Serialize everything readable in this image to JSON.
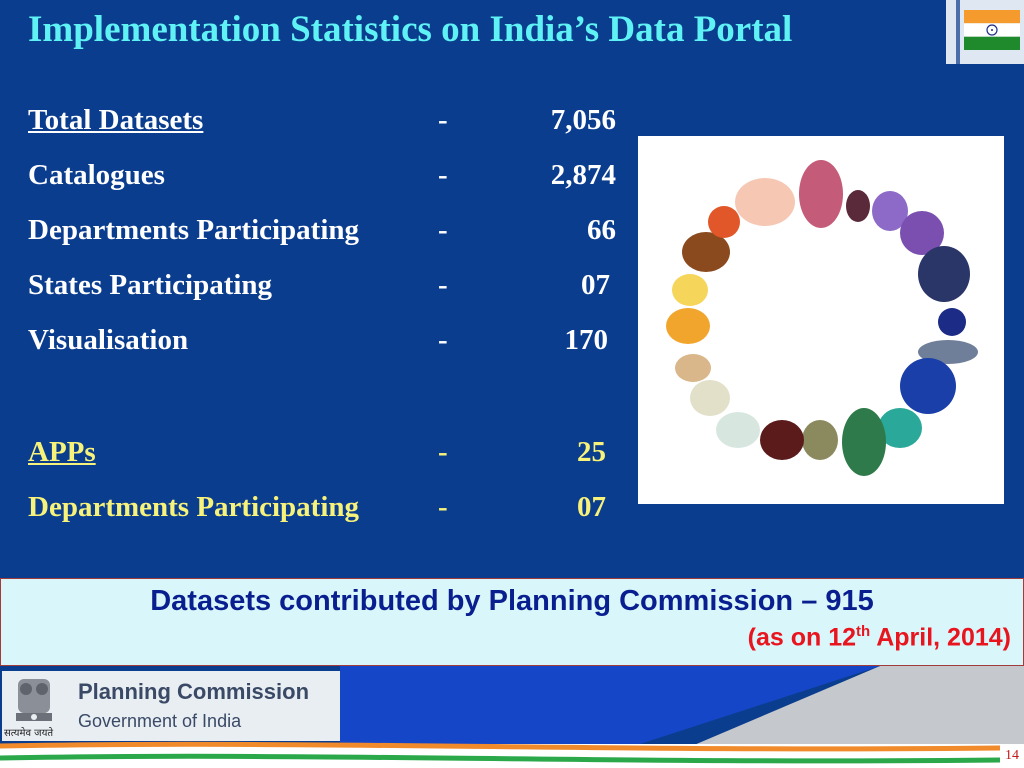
{
  "slide": {
    "title": "Implementation Statistics on India’s Data Portal",
    "stats": [
      {
        "label": "Total Datasets",
        "dash": "-",
        "value": "7,056"
      },
      {
        "label": "Catalogues",
        "dash": "-",
        "value": "2,874"
      },
      {
        "label": "Departments Participating",
        "dash": "-",
        "value": "66"
      },
      {
        "label": "States Participating",
        "dash": "-",
        "value": "07"
      },
      {
        "label": "Visualisation",
        "dash": "-",
        "value": "170"
      }
    ],
    "apps": [
      {
        "label": "APPs",
        "dash": "-",
        "value": "25"
      },
      {
        "label": "Departments Participating",
        "dash": "-",
        "value": "07"
      }
    ]
  },
  "banner": {
    "main": "Datasets contributed by Planning Commission – 915",
    "date_prefix": "(as on 12",
    "date_sup": "th",
    "date_suffix": " April, 2014)"
  },
  "footer": {
    "org_name": "Planning Commission",
    "org_sub": "Government of India",
    "motto": "सत्यमेव जयते",
    "page_number": "14"
  },
  "colors": {
    "background": "#0b3d8f",
    "title": "#5ff2f5",
    "apps_text": "#f7f27a",
    "banner_text": "#0a1f8f",
    "date_text": "#e8141e"
  },
  "icons": [
    "india-flag-icon",
    "gemstones-image",
    "state-emblem-icon"
  ]
}
